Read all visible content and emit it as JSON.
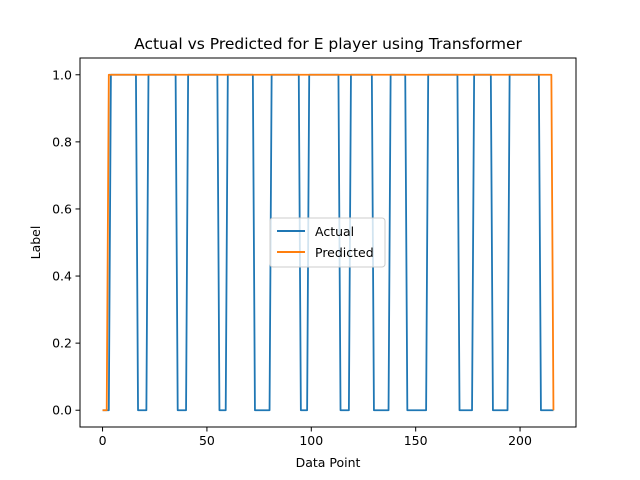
{
  "chart_data": {
    "type": "line",
    "title": "Actual vs Predicted for E player using Transformer",
    "xlabel": "Data Point",
    "ylabel": "Label",
    "xlim": [
      -10.8,
      226.8
    ],
    "ylim": [
      -0.05,
      1.05
    ],
    "xticks": [
      0,
      50,
      100,
      150,
      200
    ],
    "xtick_labels": [
      "0",
      "50",
      "100",
      "150",
      "200"
    ],
    "yticks": [
      0.0,
      0.2,
      0.4,
      0.6,
      0.8,
      1.0
    ],
    "ytick_labels": [
      "0.0",
      "0.2",
      "0.4",
      "0.6",
      "0.8",
      "1.0"
    ],
    "grid": false,
    "legend_position": "center",
    "series": [
      {
        "name": "Actual",
        "color": "#1f77b4",
        "x": [
          0,
          3,
          4,
          16,
          17,
          21,
          22,
          35,
          36,
          40,
          41,
          55,
          56,
          59,
          60,
          72,
          73,
          80,
          81,
          94,
          95,
          98,
          99,
          113,
          114,
          118,
          119,
          129,
          130,
          137,
          138,
          145,
          146,
          155,
          156,
          170,
          171,
          177,
          178,
          186,
          187,
          194,
          195,
          209,
          210,
          215,
          216
        ],
        "y": [
          0,
          0,
          1,
          1,
          0,
          0,
          1,
          1,
          0,
          0,
          1,
          1,
          0,
          0,
          1,
          1,
          0,
          0,
          1,
          1,
          0,
          0,
          1,
          1,
          0,
          0,
          1,
          1,
          0,
          0,
          1,
          1,
          0,
          0,
          1,
          1,
          0,
          0,
          1,
          1,
          0,
          0,
          1,
          1,
          0,
          0,
          0
        ]
      },
      {
        "name": "Predicted",
        "color": "#ff7f0e",
        "x": [
          0,
          2,
          3,
          215,
          216
        ],
        "y": [
          0,
          0,
          1,
          1,
          0
        ]
      }
    ]
  }
}
